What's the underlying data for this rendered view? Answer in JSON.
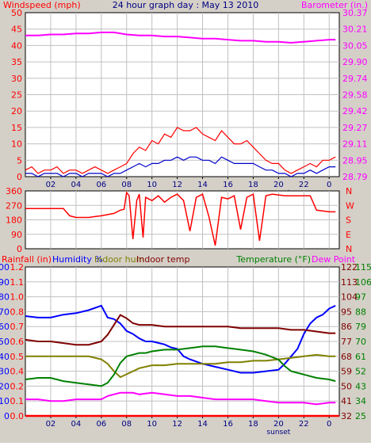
{
  "header": {
    "left_label": "Windspeed (mph)",
    "center_title": "24 hour graph day : May 13 2010",
    "right_label": "Barometer (in.)"
  },
  "colors": {
    "panel_bg": "#ffffff",
    "frame": "#000000",
    "wind": "#ff0000",
    "wind_avg": "#0000cc",
    "barometer": "#ff00ff",
    "rain": "#ff0000",
    "humidity": "#0000ff",
    "indoor_hum": "#808000",
    "indoor_temp": "#800000",
    "temperature": "#008000",
    "dew_point": "#ff00ff",
    "title_blue": "#000080",
    "gray_bg": "#d4d0c8"
  },
  "x_axis": {
    "tick_labels": [
      "02",
      "04",
      "06",
      "08",
      "10",
      "12",
      "14",
      "16",
      "18",
      "20",
      "22",
      "0"
    ],
    "tick_hours": [
      2,
      4,
      6,
      8,
      10,
      12,
      14,
      16,
      18,
      20,
      22,
      24
    ],
    "range_hours": [
      0,
      24.8
    ],
    "sunset_label": "sunset",
    "sunset_hour": 20
  },
  "chart_data": [
    {
      "type": "line",
      "panel": "wind_barometer",
      "left_axis": {
        "label": "Windspeed (mph)",
        "ticks": [
          "0",
          "5",
          "10",
          "15",
          "20",
          "25",
          "30",
          "35",
          "40",
          "45",
          "50"
        ],
        "ylim": [
          0,
          50
        ]
      },
      "right_axis": {
        "label": "Barometer (in.)",
        "ticks": [
          "28.79",
          "28.95",
          "29.11",
          "29.27",
          "29.42",
          "29.58",
          "29.74",
          "29.90",
          "30.05",
          "30.21",
          "30.37"
        ],
        "ylim": [
          28.79,
          30.37
        ]
      },
      "series": [
        {
          "axis": "left",
          "x": [
            0,
            0.5,
            1,
            1.5,
            2,
            2.5,
            3,
            3.5,
            4,
            4.5,
            5,
            5.5,
            6,
            6.5,
            7,
            7.5,
            8,
            8.5,
            9,
            9.5,
            10,
            10.5,
            11,
            11.5,
            12,
            12.5,
            13,
            13.5,
            14,
            14.5,
            15,
            15.5,
            16,
            16.5,
            17,
            17.5,
            18,
            18.5,
            19,
            19.5,
            20,
            20.5,
            21,
            21.5,
            22,
            22.5,
            23,
            23.5,
            24,
            24.5
          ],
          "y": [
            2,
            3,
            1,
            2,
            2,
            3,
            1,
            2,
            2,
            1,
            2,
            3,
            2,
            1,
            2,
            3,
            4,
            7,
            9,
            8,
            11,
            10,
            13,
            12,
            15,
            14,
            14,
            15,
            13,
            12,
            11,
            14,
            12,
            10,
            10,
            11,
            9,
            7,
            5,
            4,
            4,
            2,
            1,
            2,
            3,
            4,
            3,
            5,
            5,
            6
          ]
        },
        {
          "axis": "left",
          "x": [
            0,
            0.5,
            1,
            1.5,
            2,
            2.5,
            3,
            3.5,
            4,
            4.5,
            5,
            5.5,
            6,
            6.5,
            7,
            7.5,
            8,
            8.5,
            9,
            9.5,
            10,
            10.5,
            11,
            11.5,
            12,
            12.5,
            13,
            13.5,
            14,
            14.5,
            15,
            15.5,
            16,
            16.5,
            17,
            17.5,
            18,
            18.5,
            19,
            19.5,
            20,
            20.5,
            21,
            21.5,
            22,
            22.5,
            23,
            23.5,
            24,
            24.5
          ],
          "y": [
            1,
            1,
            0,
            1,
            1,
            1,
            0,
            1,
            1,
            0,
            1,
            1,
            1,
            0,
            1,
            1,
            2,
            3,
            4,
            3,
            4,
            4,
            5,
            5,
            6,
            5,
            6,
            6,
            5,
            5,
            4,
            6,
            5,
            4,
            4,
            4,
            4,
            3,
            2,
            2,
            1,
            1,
            0,
            1,
            1,
            2,
            1,
            2,
            3,
            3
          ]
        },
        {
          "axis": "right",
          "x": [
            0,
            1,
            2,
            3,
            4,
            5,
            6,
            7,
            8,
            9,
            10,
            11,
            12,
            13,
            14,
            15,
            16,
            17,
            18,
            19,
            20,
            21,
            22,
            23,
            24,
            24.5
          ],
          "y": [
            30.15,
            30.15,
            30.16,
            30.16,
            30.17,
            30.17,
            30.18,
            30.18,
            30.16,
            30.15,
            30.15,
            30.14,
            30.14,
            30.13,
            30.12,
            30.12,
            30.11,
            30.1,
            30.1,
            30.09,
            30.09,
            30.08,
            30.09,
            30.1,
            30.11,
            30.11
          ]
        }
      ]
    },
    {
      "type": "line",
      "panel": "wind_direction",
      "left_axis": {
        "ticks": [
          "0",
          "90",
          "180",
          "270",
          "360"
        ],
        "ylim": [
          0,
          360
        ]
      },
      "right_axis": {
        "ticks": [
          "N",
          "E",
          "S",
          "W",
          "N"
        ]
      },
      "series": [
        {
          "x": [
            0,
            1,
            2,
            3,
            3.5,
            4,
            5,
            5.5,
            6,
            7,
            7.5,
            7.8,
            8,
            8.2,
            8.5,
            8.8,
            9,
            9.3,
            9.5,
            10,
            10.5,
            11,
            11.5,
            12,
            12.5,
            13,
            13.5,
            14,
            14.5,
            15,
            15.5,
            16,
            16.5,
            17,
            17.5,
            18,
            18.5,
            19,
            19.5,
            20,
            20.5,
            21,
            21.5,
            22,
            22.5,
            23,
            24,
            24.5
          ],
          "y": [
            250,
            250,
            250,
            250,
            205,
            195,
            195,
            200,
            205,
            220,
            240,
            245,
            350,
            330,
            60,
            300,
            340,
            70,
            320,
            300,
            330,
            290,
            320,
            340,
            300,
            110,
            320,
            340,
            200,
            20,
            320,
            310,
            330,
            120,
            320,
            340,
            50,
            330,
            340,
            335,
            330,
            330,
            330,
            330,
            330,
            240,
            230,
            230
          ]
        }
      ]
    },
    {
      "type": "line",
      "panel": "temp_humidity_rain",
      "header": {
        "rain_label": "Rainfall (in)",
        "humidity_label": "Humidity %",
        "indoor_hum_label": "Indoor hum",
        "indoor_temp_label": "Indoor temp",
        "temperature_label": "Temperature (°F)",
        "dew_label": "Dew Point"
      },
      "left_axis_humidity": {
        "ticks": [
          "0",
          "10",
          "20",
          "30",
          "40",
          "50",
          "60",
          "70",
          "80",
          "90",
          "100"
        ],
        "ylim": [
          0,
          100
        ]
      },
      "left_axis_rain": {
        "ticks": [
          "0.0",
          "0.1",
          "0.2",
          "0.4",
          "0.5",
          "0.6",
          "0.7",
          "0.8",
          "1.0",
          "1.1",
          "1.2"
        ],
        "ylim": [
          0,
          1.2
        ]
      },
      "right_axis_temp_a": {
        "ticks": [
          "32",
          "41",
          "50",
          "59",
          "68",
          "77",
          "86",
          "95",
          "104",
          "113",
          "122"
        ]
      },
      "right_axis_temp_b": {
        "ticks": [
          "25",
          "34",
          "43",
          "52",
          "61",
          "70",
          "79",
          "88",
          "97",
          "106",
          "115"
        ],
        "ylim": [
          25,
          115
        ]
      },
      "series": [
        {
          "key": "rain",
          "axis": "left_rain",
          "x": [
            0,
            24.8
          ],
          "y": [
            0,
            0
          ]
        },
        {
          "key": "humidity",
          "axis": "left_humidity",
          "x": [
            0,
            1,
            2,
            3,
            4,
            5,
            6,
            6.5,
            7,
            7.5,
            8,
            8.5,
            9,
            9.5,
            10,
            10.5,
            11,
            11.5,
            12,
            12.5,
            13,
            14,
            15,
            16,
            17,
            18,
            19,
            20,
            20.5,
            21,
            21.5,
            22,
            22.5,
            23,
            23.5,
            24,
            24.5
          ],
          "y": [
            67,
            66,
            66,
            68,
            69,
            71,
            74,
            66,
            65,
            62,
            57,
            55,
            52,
            50,
            50,
            49,
            48,
            46,
            45,
            40,
            38,
            35,
            33,
            31,
            29,
            29,
            30,
            31,
            35,
            40,
            45,
            55,
            62,
            66,
            68,
            72,
            74
          ]
        },
        {
          "key": "indoor_hum",
          "axis": "left_humidity",
          "x": [
            0,
            1,
            2,
            3,
            4,
            5,
            6,
            6.5,
            7,
            7.5,
            8,
            8.5,
            9,
            10,
            11,
            12,
            13,
            14,
            15,
            16,
            17,
            18,
            19,
            20,
            21,
            22,
            23,
            24,
            24.5
          ],
          "y": [
            40,
            40,
            40,
            40,
            40,
            40,
            38,
            35,
            30,
            26,
            28,
            30,
            32,
            34,
            34,
            35,
            35,
            35,
            35,
            36,
            36,
            37,
            37,
            38,
            39,
            40,
            41,
            40,
            40
          ]
        },
        {
          "key": "indoor_temp",
          "axis": "right_temp",
          "x": [
            0,
            1,
            2,
            3,
            4,
            5,
            6,
            6.5,
            7,
            7.5,
            8,
            8.5,
            9,
            10,
            11,
            12,
            13,
            14,
            15,
            16,
            17,
            18,
            19,
            20,
            21,
            22,
            23,
            24,
            24.5
          ],
          "y": [
            71,
            70,
            70,
            69,
            68,
            68,
            70,
            74,
            80,
            86,
            84,
            81,
            80,
            80,
            79,
            79,
            79,
            79,
            79,
            79,
            78,
            78,
            78,
            78,
            77,
            77,
            76,
            75,
            75
          ]
        },
        {
          "key": "temperature",
          "axis": "right_temp",
          "x": [
            0,
            1,
            2,
            3,
            4,
            5,
            6,
            6.5,
            7,
            7.5,
            8,
            8.5,
            9,
            9.5,
            10,
            11,
            12,
            13,
            14,
            15,
            16,
            17,
            18,
            19,
            20,
            20.5,
            21,
            22,
            23,
            24,
            24.5
          ],
          "y": [
            47,
            48,
            48,
            46,
            45,
            44,
            43,
            45,
            50,
            57,
            61,
            62,
            63,
            63,
            64,
            65,
            65,
            66,
            67,
            67,
            66,
            65,
            64,
            62,
            59,
            55,
            52,
            50,
            48,
            47,
            46
          ]
        },
        {
          "key": "dew",
          "axis": "right_temp",
          "x": [
            0,
            1,
            2,
            3,
            4,
            5,
            6,
            6.5,
            7,
            7.5,
            8,
            8.5,
            9,
            10,
            11,
            12,
            13,
            14,
            15,
            16,
            17,
            18,
            19,
            20,
            21,
            22,
            23,
            24,
            24.5
          ],
          "y": [
            35,
            35,
            34,
            34,
            35,
            35,
            35,
            37,
            38,
            39,
            39,
            39,
            38,
            39,
            38,
            37,
            37,
            36,
            35,
            35,
            35,
            35,
            34,
            33,
            33,
            33,
            32,
            33,
            33
          ]
        }
      ]
    }
  ]
}
